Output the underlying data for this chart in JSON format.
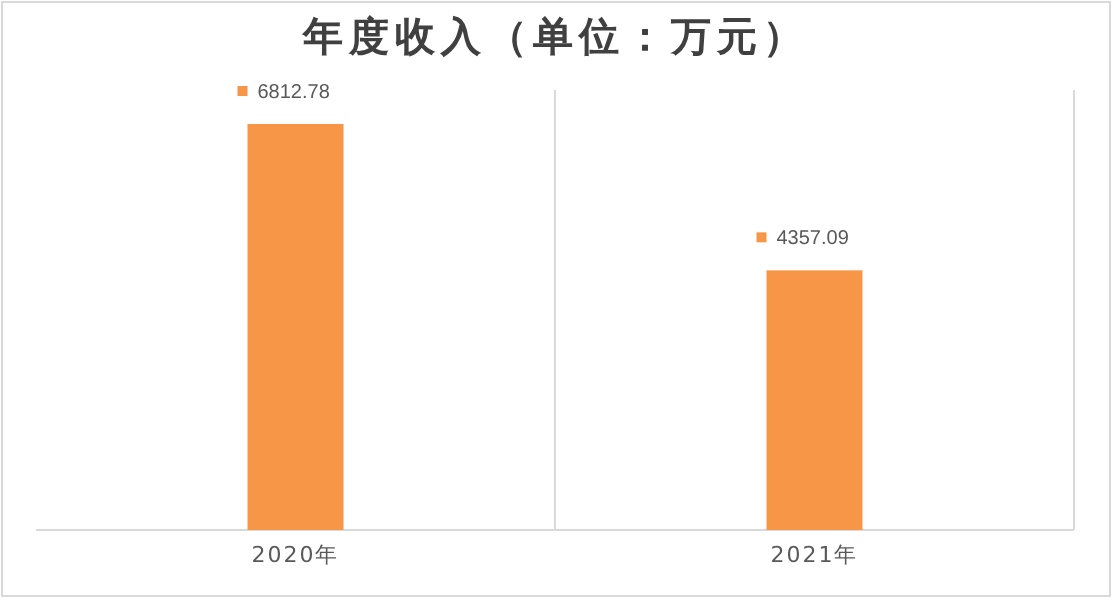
{
  "chart_data": {
    "type": "bar",
    "title": "年度收入（单位：万元）",
    "categories": [
      "2020年",
      "2021年"
    ],
    "values": [
      6812.78,
      4357.09
    ],
    "color": "#f79646",
    "data_labels": true
  }
}
